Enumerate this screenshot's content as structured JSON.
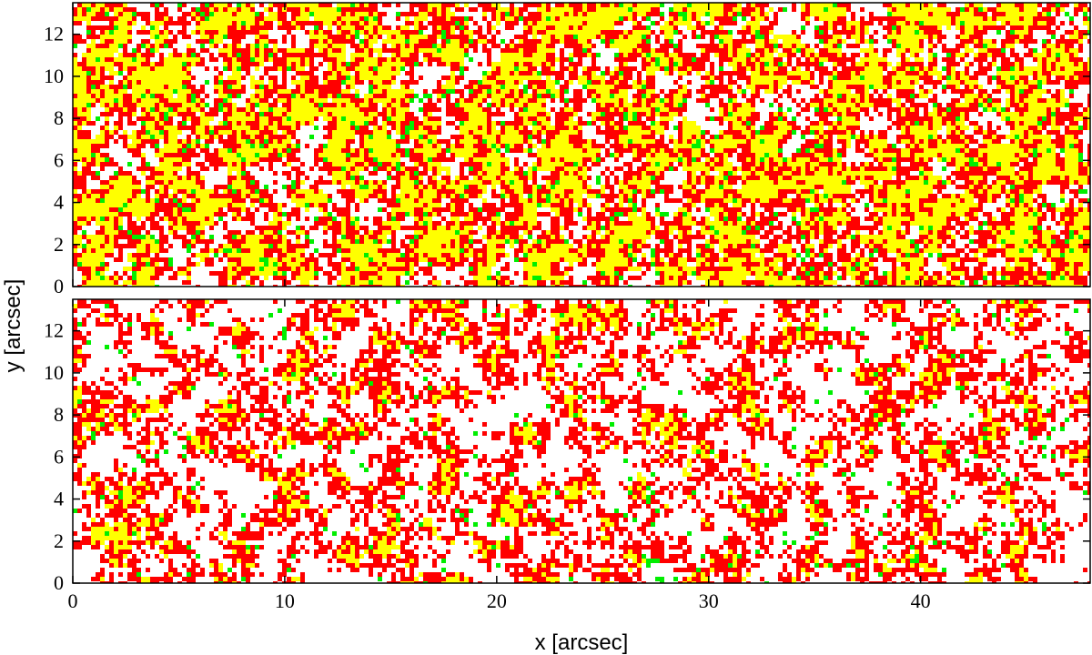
{
  "chart_data": [
    {
      "type": "heatmap",
      "panel": "top",
      "xlabel": "",
      "ylabel": "",
      "xlim": [
        0,
        48
      ],
      "ylim": [
        0,
        13.5
      ],
      "xticks": [
        0,
        10,
        20,
        30,
        40
      ],
      "yticks": [
        0,
        2,
        4,
        6,
        8,
        10,
        12
      ],
      "show_x_tick_labels": false,
      "grid": false,
      "categories": [
        "white",
        "red",
        "yellow",
        "green"
      ],
      "colors": {
        "white": "#ffffff",
        "red": "#ff0000",
        "yellow": "#ffff00",
        "green": "#00ee00"
      },
      "approx_fraction": {
        "white": 0.22,
        "red": 0.4,
        "yellow": 0.33,
        "green": 0.05
      }
    },
    {
      "type": "heatmap",
      "panel": "bottom",
      "xlabel": "x [arcsec]",
      "ylabel": "y [arcsec]",
      "xlim": [
        0,
        48
      ],
      "ylim": [
        0,
        13.5
      ],
      "xticks": [
        0,
        10,
        20,
        30,
        40
      ],
      "yticks": [
        0,
        2,
        4,
        6,
        8,
        10,
        12
      ],
      "show_x_tick_labels": true,
      "grid": false,
      "categories": [
        "white",
        "red",
        "yellow",
        "green"
      ],
      "colors": {
        "white": "#ffffff",
        "red": "#ff0000",
        "yellow": "#ffff00",
        "green": "#00ee00"
      },
      "approx_fraction": {
        "white": 0.55,
        "red": 0.36,
        "yellow": 0.07,
        "green": 0.02
      }
    }
  ]
}
